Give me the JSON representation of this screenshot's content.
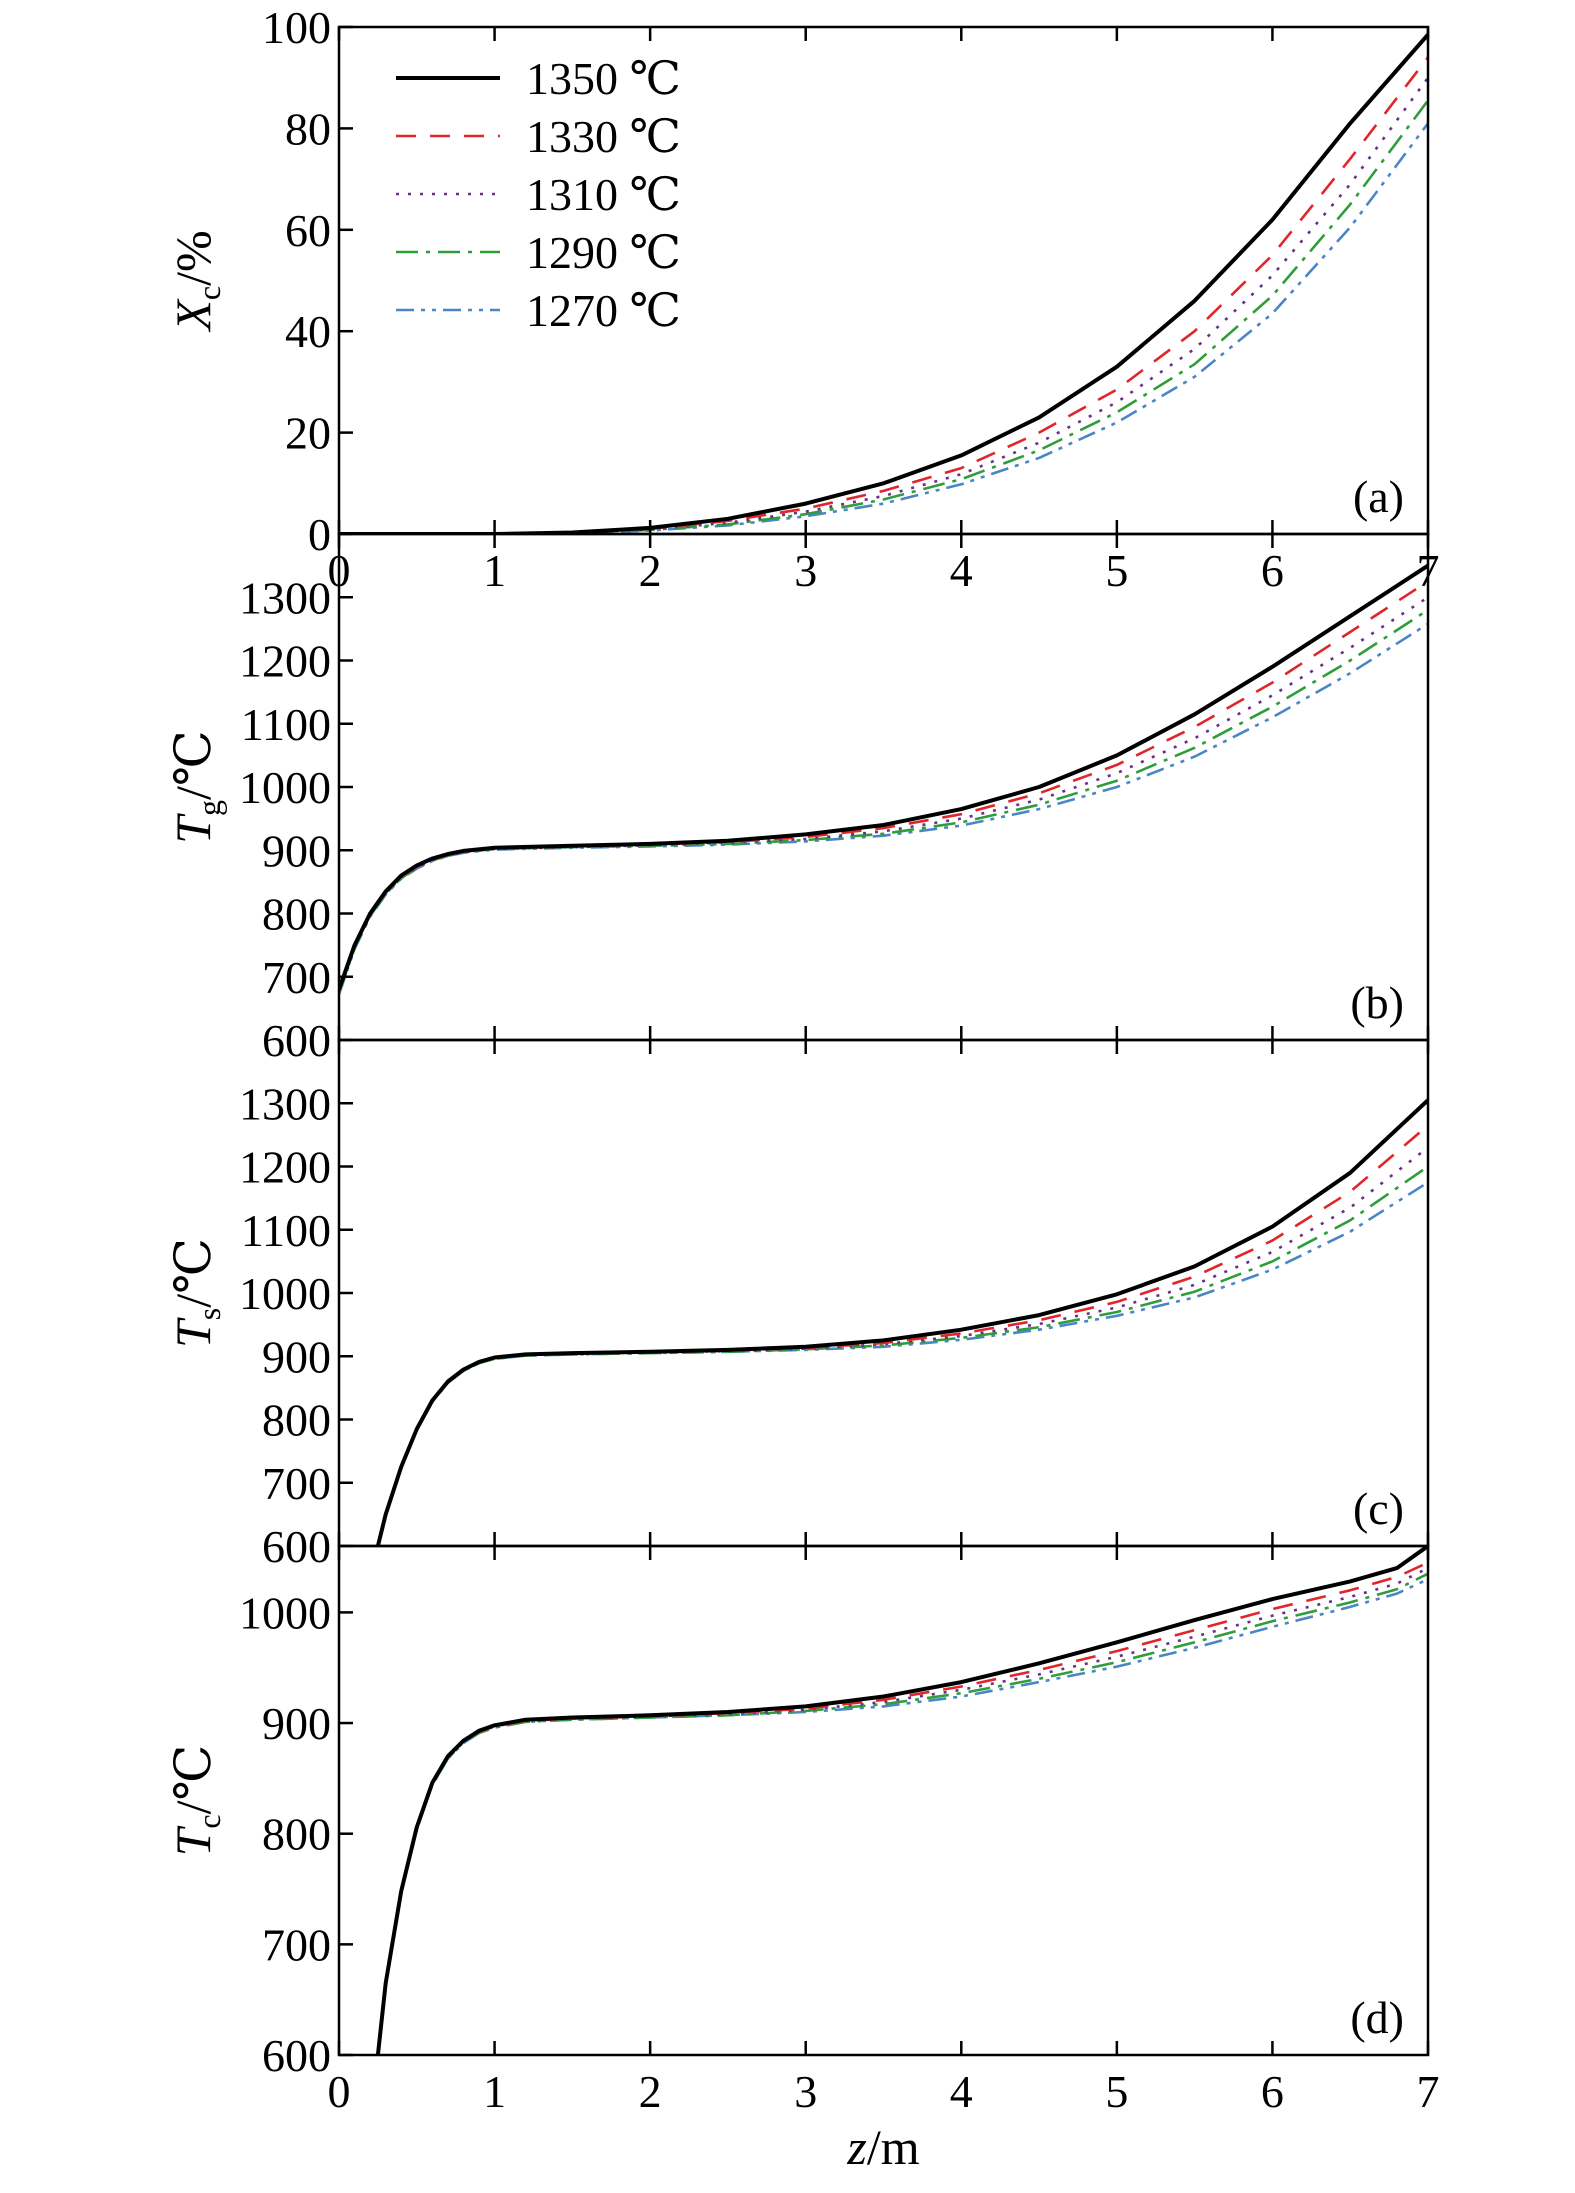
{
  "figure": {
    "x_axis_label": {
      "var": "z",
      "unit": "/m"
    }
  },
  "series_styles": [
    {
      "name": "1350 ℃",
      "color": "#000000",
      "dash": ""
    },
    {
      "name": "1330 ℃",
      "color": "#e0262b",
      "dash": "20 14"
    },
    {
      "name": "1310 ℃",
      "color": "#6a2f8a",
      "dash": "3 9"
    },
    {
      "name": "1290 ℃",
      "color": "#2f9e3a",
      "dash": "22 8 4 8"
    },
    {
      "name": "1270 ℃",
      "color": "#4a86c5",
      "dash": "18 7 4 7 4 7"
    }
  ],
  "chart_data": [
    {
      "type": "line",
      "panel": "(a)",
      "ylabel": {
        "var": "X",
        "sub": "c",
        "unit": "/%"
      },
      "xlim": [
        0,
        7
      ],
      "ylim": [
        0,
        100
      ],
      "x_ticks": [
        "0",
        "1",
        "2",
        "3",
        "4",
        "5",
        "6",
        "7"
      ],
      "y_ticks": [
        0,
        20,
        40,
        60,
        80,
        100
      ],
      "grid": false,
      "legend": "top-left",
      "x": [
        0,
        1,
        1.5,
        2,
        2.5,
        3,
        3.5,
        4,
        4.5,
        5,
        5.5,
        6,
        6.5,
        7
      ],
      "series": [
        {
          "name": "1350 ℃",
          "values": [
            0,
            0,
            0.3,
            1.2,
            3,
            6,
            10,
            15.5,
            23,
            33,
            46,
            62,
            81,
            98.5
          ]
        },
        {
          "name": "1330 ℃",
          "values": [
            0,
            0,
            0.25,
            1,
            2.6,
            5,
            8.5,
            13,
            20,
            28.5,
            40,
            55,
            74,
            94
          ]
        },
        {
          "name": "1310 ℃",
          "values": [
            0,
            0,
            0.2,
            0.9,
            2.2,
            4.4,
            7.5,
            11.8,
            18,
            26,
            36.5,
            51,
            69,
            90
          ]
        },
        {
          "name": "1290 ℃",
          "values": [
            0,
            0,
            0.15,
            0.8,
            1.9,
            3.9,
            6.8,
            10.8,
            16.5,
            24,
            33.5,
            47,
            65,
            85.5
          ]
        },
        {
          "name": "1270 ℃",
          "values": [
            0,
            0,
            0.1,
            0.7,
            1.7,
            3.5,
            6,
            9.8,
            15,
            22,
            31,
            43.5,
            60.5,
            81
          ]
        }
      ]
    },
    {
      "type": "line",
      "panel": "(b)",
      "ylabel": {
        "var": "T",
        "sub": "g",
        "unit": "/℃"
      },
      "xlim": [
        0,
        7
      ],
      "ylim": [
        600,
        1400
      ],
      "x_ticks": [
        "",
        "",
        "",
        "",
        "",
        "",
        "",
        ""
      ],
      "y_ticks": [
        600,
        700,
        800,
        900,
        1000,
        1100,
        1200,
        1300
      ],
      "grid": false,
      "x": [
        0,
        0.1,
        0.2,
        0.3,
        0.4,
        0.5,
        0.6,
        0.7,
        0.8,
        1,
        1.5,
        2,
        2.5,
        3,
        3.5,
        4,
        4.5,
        5,
        5.5,
        6,
        6.5,
        7
      ],
      "series": [
        {
          "name": "1350 ℃",
          "values": [
            680,
            750,
            800,
            835,
            860,
            876,
            887,
            894,
            899,
            904,
            907,
            910,
            915,
            925,
            940,
            965,
            1000,
            1050,
            1115,
            1190,
            1270,
            1350
          ]
        },
        {
          "name": "1330 ℃",
          "values": [
            678,
            748,
            798,
            833,
            858,
            874,
            885,
            893,
            898,
            903,
            906,
            909,
            913,
            921,
            935,
            957,
            990,
            1035,
            1095,
            1165,
            1245,
            1325
          ]
        },
        {
          "name": "1310 ℃",
          "values": [
            676,
            746,
            797,
            832,
            857,
            873,
            884,
            892,
            897,
            902,
            905,
            908,
            912,
            918,
            930,
            950,
            980,
            1022,
            1077,
            1145,
            1220,
            1300
          ]
        },
        {
          "name": "1290 ℃",
          "values": [
            674,
            745,
            796,
            831,
            856,
            872,
            884,
            891,
            897,
            902,
            905,
            907,
            910,
            916,
            926,
            944,
            972,
            1010,
            1062,
            1127,
            1200,
            1280
          ]
        },
        {
          "name": "1270 ℃",
          "values": [
            672,
            744,
            795,
            830,
            855,
            871,
            883,
            891,
            896,
            901,
            904,
            906,
            909,
            914,
            923,
            939,
            965,
            1000,
            1048,
            1110,
            1180,
            1258
          ]
        }
      ]
    },
    {
      "type": "line",
      "panel": "(c)",
      "ylabel": {
        "var": "T",
        "sub": "s",
        "unit": "/℃"
      },
      "xlim": [
        0,
        7
      ],
      "ylim": [
        600,
        1400
      ],
      "x_ticks": [
        "",
        "",
        "",
        "",
        "",
        "",
        "",
        ""
      ],
      "y_ticks": [
        600,
        700,
        800,
        900,
        1000,
        1100,
        1200,
        1300
      ],
      "grid": false,
      "x": [
        0.25,
        0.3,
        0.4,
        0.5,
        0.6,
        0.7,
        0.8,
        0.9,
        1,
        1.2,
        1.5,
        2,
        2.5,
        3,
        3.5,
        4,
        4.5,
        5,
        5.5,
        6,
        6.5,
        7
      ],
      "series": [
        {
          "name": "1350 ℃",
          "values": [
            600,
            650,
            725,
            785,
            830,
            860,
            879,
            891,
            898,
            903,
            905,
            907,
            910,
            915,
            925,
            942,
            965,
            998,
            1042,
            1105,
            1190,
            1305
          ]
        },
        {
          "name": "1330 ℃",
          "values": [
            600,
            650,
            725,
            785,
            829,
            859,
            878,
            890,
            897,
            902,
            904,
            906,
            909,
            913,
            921,
            936,
            957,
            986,
            1026,
            1083,
            1160,
            1265
          ]
        },
        {
          "name": "1310 ℃",
          "values": [
            600,
            649,
            724,
            784,
            829,
            859,
            878,
            890,
            897,
            902,
            904,
            906,
            908,
            912,
            919,
            932,
            951,
            977,
            1013,
            1065,
            1135,
            1230
          ]
        },
        {
          "name": "1290 ℃",
          "values": [
            600,
            649,
            724,
            784,
            828,
            858,
            877,
            889,
            896,
            901,
            903,
            905,
            907,
            911,
            917,
            929,
            946,
            970,
            1002,
            1050,
            1115,
            1200
          ]
        },
        {
          "name": "1270 ℃",
          "values": [
            600,
            648,
            723,
            783,
            828,
            858,
            877,
            889,
            896,
            901,
            903,
            905,
            907,
            910,
            915,
            926,
            942,
            964,
            993,
            1037,
            1097,
            1175
          ]
        }
      ]
    },
    {
      "type": "line",
      "panel": "(d)",
      "ylabel": {
        "var": "T",
        "sub": "c",
        "unit": "/℃"
      },
      "xlim": [
        0,
        7
      ],
      "ylim": [
        600,
        1060
      ],
      "x_ticks": [
        "0",
        "1",
        "2",
        "3",
        "4",
        "5",
        "6",
        "7"
      ],
      "y_ticks": [
        600,
        700,
        800,
        900,
        1000
      ],
      "grid": false,
      "x": [
        0.25,
        0.3,
        0.4,
        0.5,
        0.6,
        0.7,
        0.8,
        0.9,
        1,
        1.2,
        1.5,
        2,
        2.5,
        3,
        3.5,
        4,
        4.5,
        5,
        5.5,
        6,
        6.5,
        6.8,
        7
      ],
      "series": [
        {
          "name": "1350 ℃",
          "values": [
            600,
            665,
            748,
            806,
            846,
            870,
            884,
            893,
            898,
            903,
            905,
            907,
            910,
            915,
            924,
            937,
            954,
            973,
            993,
            1012,
            1028,
            1040,
            1060
          ]
        },
        {
          "name": "1330 ℃",
          "values": [
            600,
            664,
            747,
            805,
            845,
            869,
            884,
            892,
            897,
            902,
            904,
            906,
            909,
            913,
            921,
            933,
            948,
            965,
            984,
            1003,
            1020,
            1032,
            1045
          ]
        },
        {
          "name": "1310 ℃",
          "values": [
            600,
            664,
            747,
            805,
            845,
            869,
            883,
            892,
            897,
            902,
            904,
            906,
            908,
            912,
            919,
            930,
            944,
            960,
            978,
            997,
            1014,
            1026,
            1040
          ]
        },
        {
          "name": "1290 ℃",
          "values": [
            600,
            663,
            746,
            804,
            844,
            868,
            883,
            891,
            896,
            901,
            903,
            905,
            907,
            911,
            917,
            927,
            940,
            955,
            973,
            992,
            1009,
            1021,
            1035
          ]
        },
        {
          "name": "1270 ℃",
          "values": [
            600,
            663,
            746,
            804,
            844,
            868,
            882,
            891,
            896,
            901,
            903,
            905,
            907,
            910,
            915,
            924,
            937,
            951,
            968,
            987,
            1005,
            1017,
            1030
          ]
        }
      ]
    }
  ]
}
